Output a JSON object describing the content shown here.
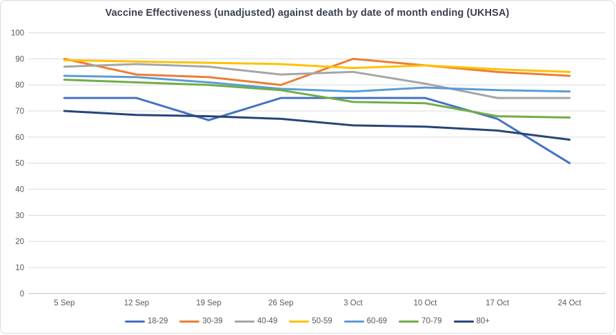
{
  "chart_data": {
    "type": "line",
    "title": "Vaccine Effectiveness (unadjusted) against death by date of month ending (UKHSA)",
    "categories": [
      "5 Sep",
      "12 Sep",
      "19 Sep",
      "26 Sep",
      "3 Oct",
      "10 Oct",
      "17 Oct",
      "24 Oct"
    ],
    "series": [
      {
        "name": "18-29",
        "color": "#4472C4",
        "values": [
          75,
          75,
          66.5,
          75,
          75,
          75,
          67,
          50
        ]
      },
      {
        "name": "30-39",
        "color": "#ED7D31",
        "values": [
          90,
          84,
          83,
          80,
          90,
          87.5,
          85,
          83.5
        ]
      },
      {
        "name": "40-49",
        "color": "#A5A5A5",
        "values": [
          87,
          88,
          87,
          84,
          85,
          80.5,
          75,
          75
        ]
      },
      {
        "name": "50-59",
        "color": "#FFC000",
        "values": [
          89.5,
          89,
          88.5,
          88,
          86.5,
          87.5,
          86,
          85
        ]
      },
      {
        "name": "60-69",
        "color": "#5B9BD5",
        "values": [
          83.5,
          83,
          81,
          78.5,
          77.5,
          79,
          78,
          77.5
        ]
      },
      {
        "name": "70-79",
        "color": "#70AD47",
        "values": [
          82,
          81,
          80,
          78,
          73.5,
          73,
          68,
          67.5
        ]
      },
      {
        "name": "80+",
        "color": "#264478",
        "values": [
          70,
          68.5,
          68,
          67,
          64.5,
          64,
          62.5,
          59
        ]
      }
    ],
    "ylim": [
      0,
      100
    ],
    "yticks": [
      100,
      90,
      80,
      70,
      60,
      50,
      40,
      30,
      20,
      10,
      0
    ],
    "grid": true,
    "legend_position": "bottom"
  },
  "styles": {
    "title_color": "#3b3f52",
    "axis_label_color": "#595959",
    "gridline_color": "#d9d9d9",
    "axis_line_color": "#bfbfbf",
    "background": "#ffffff",
    "frame_border_color": "#d9d9d9"
  }
}
